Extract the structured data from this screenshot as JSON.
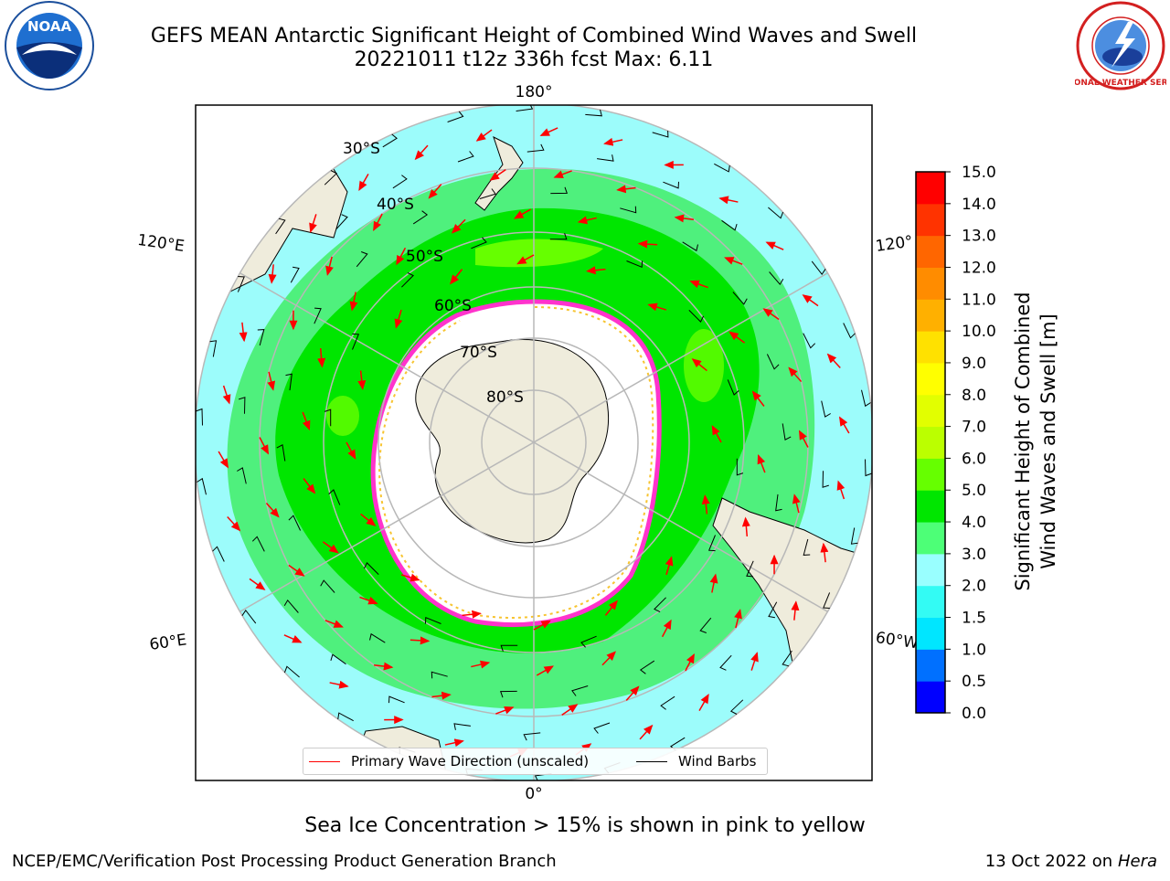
{
  "header": {
    "title": "GEFS MEAN Antarctic Significant Height of Combined Wind Waves and Swell",
    "subtitle": "20221011 t12z 336h fcst   Max: 6.11"
  },
  "logos": {
    "left": {
      "icon": "noaa-logo-icon",
      "text": "NOAA"
    },
    "right": {
      "icon": "nws-logo-icon",
      "text": "NATIONAL WEATHER SERVICE"
    }
  },
  "map": {
    "projection": "south-polar-stereographic",
    "longitude_labels": {
      "top": "180°",
      "bottom": "0°",
      "left_upper": "120°E",
      "left_lower": "60°E",
      "right_upper": "120°",
      "right_lower": "60°W"
    },
    "latitude_labels": [
      "30°S",
      "40°S",
      "50°S",
      "60°S",
      "70°S",
      "80°S"
    ],
    "colors": {
      "land": "#efecdc",
      "ice_edge": "#ff33cc",
      "ice_yellow": "#f7c430",
      "grid": "#b8b8b8",
      "direction_arrow": "#ff0000",
      "wind_barb": "#000000"
    }
  },
  "legend": {
    "items": [
      {
        "label": "Primary Wave Direction (unscaled)",
        "color": "#ff0000"
      },
      {
        "label": "Wind Barbs",
        "color": "#000000"
      }
    ]
  },
  "colorbar": {
    "label_line1": "Significant Height of Combined",
    "label_line2": "Wind Waves and Swell [m]",
    "ticks": [
      "0.0",
      "0.5",
      "1.0",
      "1.5",
      "2.0",
      "3.0",
      "4.0",
      "5.0",
      "6.0",
      "7.0",
      "8.0",
      "9.0",
      "10.0",
      "11.0",
      "12.0",
      "13.0",
      "14.0",
      "15.0"
    ],
    "colors": [
      "#0000ff",
      "#0070ff",
      "#00e6ff",
      "#33fbf4",
      "#99ffff",
      "#4dff77",
      "#00e600",
      "#66ff00",
      "#bbff00",
      "#e2ff00",
      "#ffff00",
      "#ffe100",
      "#ffb000",
      "#ff8c00",
      "#ff6600",
      "#ff3300",
      "#ff0000"
    ]
  },
  "notes": {
    "sea_ice": "Sea Ice Concentration > 15% is shown in pink to yellow",
    "footer_left": "NCEP/EMC/Verification Post Processing Product Generation Branch",
    "footer_right_date": "13 Oct 2022 on ",
    "footer_right_host": "Hera"
  }
}
